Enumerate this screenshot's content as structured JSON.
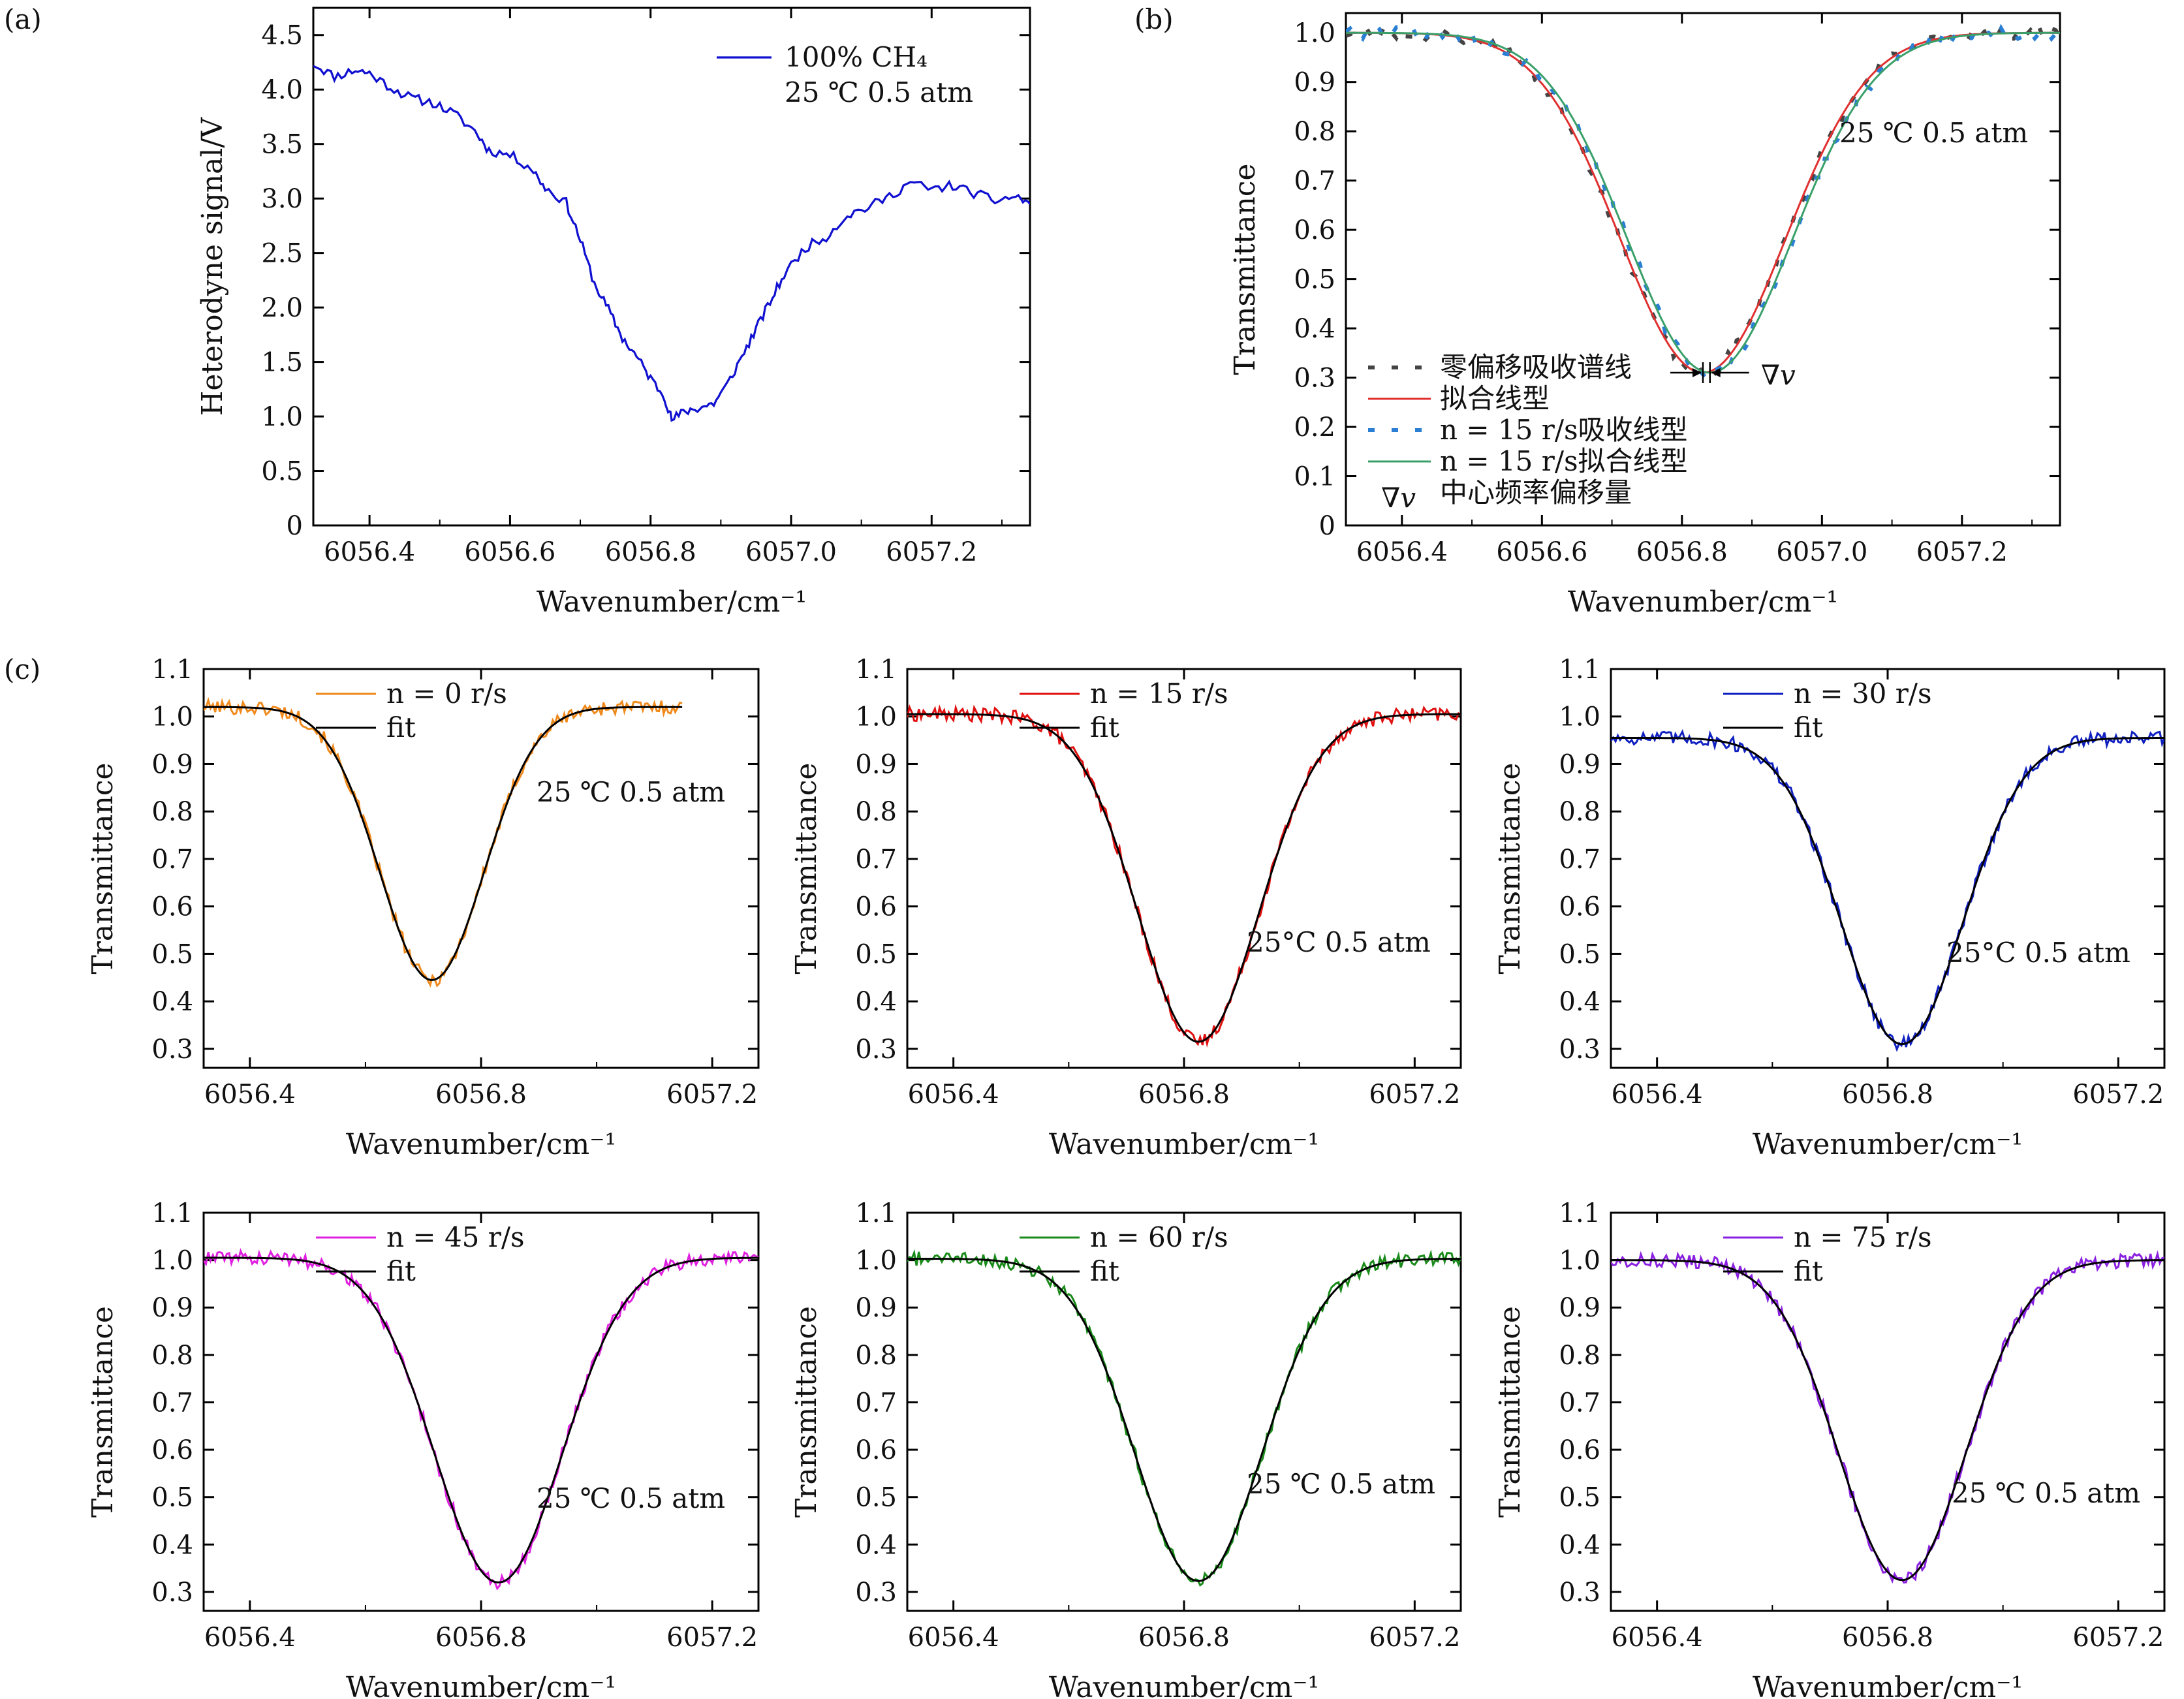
{
  "panel_labels": [
    "(a)",
    "(b)",
    "(c)"
  ],
  "colors": {
    "a_signal": "#1010d0",
    "b_zero_offset": "#444444",
    "b_fit": "#e03030",
    "b_n15": "#2a7fd4",
    "b_n15_fit": "#3aa06a",
    "c_n0": "#f08a1c",
    "c_n15": "#e01010",
    "c_n30": "#1020c0",
    "c_n45": "#e020e0",
    "c_n60": "#1a8a1a",
    "c_n75": "#8a20e0",
    "fit": "#000000"
  },
  "chart_data": [
    {
      "id": "a",
      "type": "line",
      "panel_label": "(a)",
      "xlabel": "Wavenumber/cm⁻¹",
      "ylabel": "Heterodyne signal/V",
      "xlim": [
        6056.32,
        6057.34
      ],
      "ylim": [
        0,
        4.75
      ],
      "xticks": [
        6056.4,
        6056.6,
        6056.8,
        6057.0,
        6057.2
      ],
      "xtick_labels": [
        "6056.4",
        "6056.6",
        "6056.8",
        "6057.0",
        "6057.2"
      ],
      "yticks": [
        0,
        0.5,
        1.0,
        1.5,
        2.0,
        2.5,
        3.0,
        3.5,
        4.0,
        4.5
      ],
      "ytick_labels": [
        "0",
        "0.5",
        "1.0",
        "1.5",
        "2.0",
        "2.5",
        "3.0",
        "3.5",
        "4.0",
        "4.5"
      ],
      "legend": [
        "100% CH₄"
      ],
      "annotation": "25 ℃ 0.5 atm",
      "series": [
        {
          "name": "100% CH₄",
          "style": "solid",
          "color_key": "a_signal",
          "x": [
            6056.32,
            6056.35,
            6056.38,
            6056.4,
            6056.43,
            6056.46,
            6056.49,
            6056.52,
            6056.55,
            6056.57,
            6056.6,
            6056.63,
            6056.65,
            6056.68,
            6056.7,
            6056.72,
            6056.74,
            6056.76,
            6056.78,
            6056.8,
            6056.82,
            6056.83,
            6056.85,
            6056.87,
            6056.89,
            6056.91,
            6056.93,
            6056.95,
            6056.97,
            6056.99,
            6057.02,
            6057.05,
            6057.08,
            6057.11,
            6057.14,
            6057.17,
            6057.2,
            6057.23,
            6057.26,
            6057.29,
            6057.32,
            6057.34
          ],
          "y": [
            4.24,
            4.12,
            4.18,
            4.15,
            4.02,
            3.92,
            3.88,
            3.78,
            3.62,
            3.44,
            3.4,
            3.28,
            3.1,
            2.96,
            2.62,
            2.22,
            1.98,
            1.72,
            1.55,
            1.35,
            1.18,
            0.97,
            1.05,
            1.08,
            1.12,
            1.3,
            1.55,
            1.8,
            2.05,
            2.3,
            2.55,
            2.65,
            2.85,
            2.92,
            3.02,
            3.15,
            3.08,
            3.12,
            3.05,
            2.98,
            3.02,
            2.95
          ]
        }
      ]
    },
    {
      "id": "b",
      "type": "line",
      "panel_label": "(b)",
      "xlabel": "Wavenumber/cm⁻¹",
      "ylabel": "Transmittance",
      "xlim": [
        6056.32,
        6057.34
      ],
      "ylim": [
        0,
        1.04
      ],
      "xticks": [
        6056.4,
        6056.6,
        6056.8,
        6057.0,
        6057.2
      ],
      "xtick_labels": [
        "6056.4",
        "6056.6",
        "6056.8",
        "6057.0",
        "6057.2"
      ],
      "yticks": [
        0,
        0.1,
        0.2,
        0.3,
        0.4,
        0.5,
        0.6,
        0.7,
        0.8,
        0.9,
        1.0
      ],
      "ytick_labels": [
        "0",
        "0.1",
        "0.2",
        "0.3",
        "0.4",
        "0.5",
        "0.6",
        "0.7",
        "0.8",
        "0.9",
        "1.0"
      ],
      "annotation": "25 ℃ 0.5 atm",
      "shift_marker": "∇v",
      "legend": [
        "零偏移吸收谱线",
        "拟合线型",
        "n = 15 r/s吸收线型",
        "n = 15 r/s拟合线型",
        "中心频率偏移量"
      ],
      "line_model": {
        "baseline": 1.0,
        "depth": 0.69,
        "sigma": 0.118
      },
      "series": [
        {
          "name": "零偏移吸收谱线",
          "style": "dashed",
          "color_key": "b_zero_offset",
          "center": 6056.83
        },
        {
          "name": "拟合线型",
          "style": "solid",
          "color_key": "b_fit",
          "center": 6056.83
        },
        {
          "name": "n = 15 r/s吸收线型",
          "style": "dashed",
          "color_key": "b_n15",
          "center": 6056.84
        },
        {
          "name": "n = 15 r/s拟合线型",
          "style": "solid",
          "color_key": "b_n15_fit",
          "center": 6056.84
        }
      ]
    },
    {
      "id": "c1",
      "type": "line",
      "panel_label": "(c)",
      "xlabel": "Wavenumber/cm⁻¹",
      "ylabel": "Transmittance",
      "xlim": [
        6056.32,
        6057.28
      ],
      "ylim": [
        0.26,
        1.1
      ],
      "xticks": [
        6056.4,
        6056.8,
        6057.2
      ],
      "xtick_labels": [
        "6056.4",
        "6056.8",
        "6057.2"
      ],
      "yticks": [
        0.3,
        0.4,
        0.5,
        0.6,
        0.7,
        0.8,
        0.9,
        1.0,
        1.1
      ],
      "ytick_labels": [
        "0.3",
        "0.4",
        "0.5",
        "0.6",
        "0.7",
        "0.8",
        "0.9",
        "1.0",
        "1.1"
      ],
      "legend": [
        "n = 0 r/s",
        "fit"
      ],
      "annotation": "25 ℃ 0.5 atm",
      "measured": {
        "name": "n = 0 r/s",
        "color_key": "c_n0",
        "x_range": [
          6056.32,
          6057.15
        ]
      },
      "fit": {
        "name": "fit",
        "color_key": "fit",
        "baseline": 1.02,
        "depth": 0.575,
        "center": 6056.715,
        "sigma": 0.09
      }
    },
    {
      "id": "c2",
      "type": "line",
      "xlabel": "Wavenumber/cm⁻¹",
      "ylabel": "Transmittance",
      "xlim": [
        6056.32,
        6057.28
      ],
      "ylim": [
        0.26,
        1.1
      ],
      "xticks": [
        6056.4,
        6056.8,
        6057.2
      ],
      "xtick_labels": [
        "6056.4",
        "6056.8",
        "6057.2"
      ],
      "yticks": [
        0.3,
        0.4,
        0.5,
        0.6,
        0.7,
        0.8,
        0.9,
        1.0,
        1.1
      ],
      "ytick_labels": [
        "0.3",
        "0.4",
        "0.5",
        "0.6",
        "0.7",
        "0.8",
        "0.9",
        "1.0",
        "1.1"
      ],
      "legend": [
        "n = 15 r/s",
        "fit"
      ],
      "annotation": "25°C 0.5 atm",
      "measured": {
        "name": "n = 15 r/s",
        "color_key": "c_n15",
        "x_range": [
          6056.32,
          6057.28
        ]
      },
      "fit": {
        "name": "fit",
        "color_key": "fit",
        "baseline": 1.005,
        "depth": 0.69,
        "center": 6056.825,
        "sigma": 0.105
      }
    },
    {
      "id": "c3",
      "type": "line",
      "xlabel": "Wavenumber/cm⁻¹",
      "ylabel": "Transmittance",
      "xlim": [
        6056.32,
        6057.28
      ],
      "ylim": [
        0.26,
        1.1
      ],
      "xticks": [
        6056.4,
        6056.8,
        6057.2
      ],
      "xtick_labels": [
        "6056.4",
        "6056.8",
        "6057.2"
      ],
      "yticks": [
        0.3,
        0.4,
        0.5,
        0.6,
        0.7,
        0.8,
        0.9,
        1.0,
        1.1
      ],
      "ytick_labels": [
        "0.3",
        "0.4",
        "0.5",
        "0.6",
        "0.7",
        "0.8",
        "0.9",
        "1.0",
        "1.1"
      ],
      "legend": [
        "n = 30 r/s",
        "fit"
      ],
      "annotation": "25°C 0.5 atm",
      "measured": {
        "name": "n = 30 r/s",
        "color_key": "c_n30",
        "x_range": [
          6056.32,
          6057.28
        ]
      },
      "fit": {
        "name": "fit",
        "color_key": "fit",
        "baseline": 0.955,
        "depth": 0.645,
        "center": 6056.825,
        "sigma": 0.105
      }
    },
    {
      "id": "c4",
      "type": "line",
      "xlabel": "Wavenumber/cm⁻¹",
      "ylabel": "Transmittance",
      "xlim": [
        6056.32,
        6057.28
      ],
      "ylim": [
        0.26,
        1.1
      ],
      "xticks": [
        6056.4,
        6056.8,
        6057.2
      ],
      "xtick_labels": [
        "6056.4",
        "6056.8",
        "6057.2"
      ],
      "yticks": [
        0.3,
        0.4,
        0.5,
        0.6,
        0.7,
        0.8,
        0.9,
        1.0,
        1.1
      ],
      "ytick_labels": [
        "0.3",
        "0.4",
        "0.5",
        "0.6",
        "0.7",
        "0.8",
        "0.9",
        "1.0",
        "1.1"
      ],
      "legend": [
        "n = 45 r/s",
        "fit"
      ],
      "annotation": "25 ℃ 0.5 atm",
      "measured": {
        "name": "n = 45 r/s",
        "color_key": "c_n45",
        "x_range": [
          6056.32,
          6057.28
        ]
      },
      "fit": {
        "name": "fit",
        "color_key": "fit",
        "baseline": 1.005,
        "depth": 0.685,
        "center": 6056.83,
        "sigma": 0.11
      }
    },
    {
      "id": "c5",
      "type": "line",
      "xlabel": "Wavenumber/cm⁻¹",
      "ylabel": "Transmittance",
      "xlim": [
        6056.32,
        6057.28
      ],
      "ylim": [
        0.26,
        1.1
      ],
      "xticks": [
        6056.4,
        6056.8,
        6057.2
      ],
      "xtick_labels": [
        "6056.4",
        "6056.8",
        "6057.2"
      ],
      "yticks": [
        0.3,
        0.4,
        0.5,
        0.6,
        0.7,
        0.8,
        0.9,
        1.0,
        1.1
      ],
      "ytick_labels": [
        "0.3",
        "0.4",
        "0.5",
        "0.6",
        "0.7",
        "0.8",
        "0.9",
        "1.0",
        "1.1"
      ],
      "legend": [
        "n = 60 r/s",
        "fit"
      ],
      "annotation": "25 ℃ 0.5 atm",
      "measured": {
        "name": "n = 60 r/s",
        "color_key": "c_n60",
        "x_range": [
          6056.32,
          6057.28
        ]
      },
      "fit": {
        "name": "fit",
        "color_key": "fit",
        "baseline": 1.003,
        "depth": 0.68,
        "center": 6056.825,
        "sigma": 0.11
      }
    },
    {
      "id": "c6",
      "type": "line",
      "xlabel": "Wavenumber/cm⁻¹",
      "ylabel": "Transmittance",
      "xlim": [
        6056.32,
        6057.28
      ],
      "ylim": [
        0.26,
        1.1
      ],
      "xticks": [
        6056.4,
        6056.8,
        6057.2
      ],
      "xtick_labels": [
        "6056.4",
        "6056.8",
        "6057.2"
      ],
      "yticks": [
        0.3,
        0.4,
        0.5,
        0.6,
        0.7,
        0.8,
        0.9,
        1.0,
        1.1
      ],
      "ytick_labels": [
        "0.3",
        "0.4",
        "0.5",
        "0.6",
        "0.7",
        "0.8",
        "0.9",
        "1.0",
        "1.1"
      ],
      "legend": [
        "n = 75 r/s",
        "fit"
      ],
      "annotation": "25 ℃ 0.5 atm",
      "measured": {
        "name": "n = 75 r/s",
        "color_key": "c_n75",
        "x_range": [
          6056.32,
          6057.28
        ]
      },
      "fit": {
        "name": "fit",
        "color_key": "fit",
        "baseline": 1.0,
        "depth": 0.675,
        "center": 6056.825,
        "sigma": 0.11
      }
    }
  ]
}
